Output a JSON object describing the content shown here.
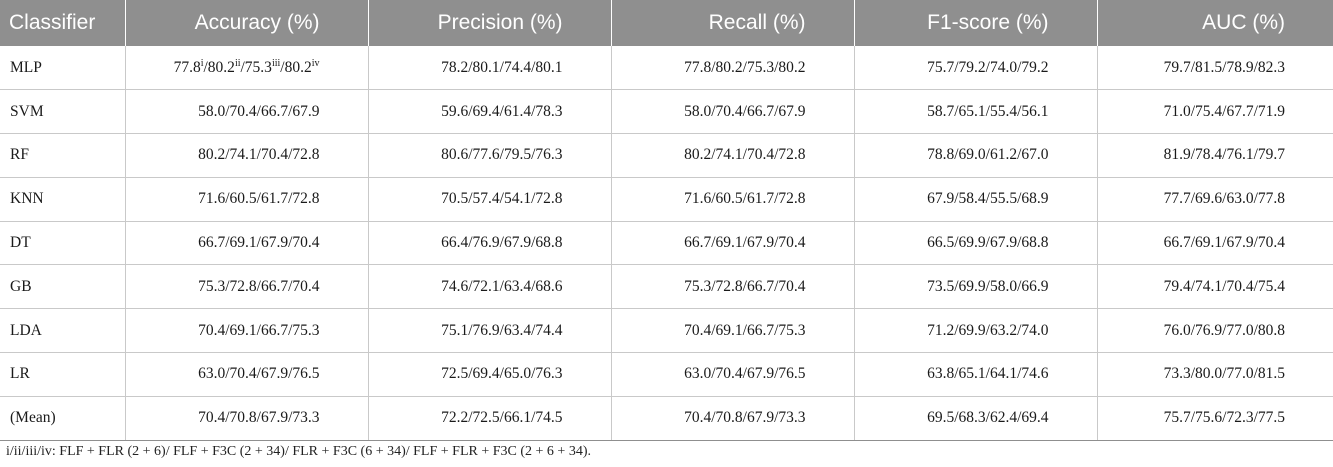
{
  "headers": [
    "Classifier",
    "Accuracy (%)",
    "Precision (%)",
    "Recall (%)",
    "F1-score (%)",
    "AUC (%)"
  ],
  "first_row_accuracy": {
    "values": [
      "77.8",
      "/80.2",
      "/75.3",
      "/80.2"
    ],
    "markers": [
      "i",
      "ii",
      "iii",
      "iv"
    ]
  },
  "rows": [
    {
      "classifier": "MLP",
      "accuracy": "",
      "precision": "78.2/80.1/74.4/80.1",
      "recall": "77.8/80.2/75.3/80.2",
      "f1": "75.7/79.2/74.0/79.2",
      "auc": "79.7/81.5/78.9/82.3"
    },
    {
      "classifier": "SVM",
      "accuracy": "58.0/70.4/66.7/67.9",
      "precision": "59.6/69.4/61.4/78.3",
      "recall": "58.0/70.4/66.7/67.9",
      "f1": "58.7/65.1/55.4/56.1",
      "auc": "71.0/75.4/67.7/71.9"
    },
    {
      "classifier": "RF",
      "accuracy": "80.2/74.1/70.4/72.8",
      "precision": "80.6/77.6/79.5/76.3",
      "recall": "80.2/74.1/70.4/72.8",
      "f1": "78.8/69.0/61.2/67.0",
      "auc": "81.9/78.4/76.1/79.7"
    },
    {
      "classifier": "KNN",
      "accuracy": "71.6/60.5/61.7/72.8",
      "precision": "70.5/57.4/54.1/72.8",
      "recall": "71.6/60.5/61.7/72.8",
      "f1": "67.9/58.4/55.5/68.9",
      "auc": "77.7/69.6/63.0/77.8"
    },
    {
      "classifier": "DT",
      "accuracy": "66.7/69.1/67.9/70.4",
      "precision": "66.4/76.9/67.9/68.8",
      "recall": "66.7/69.1/67.9/70.4",
      "f1": "66.5/69.9/67.9/68.8",
      "auc": "66.7/69.1/67.9/70.4"
    },
    {
      "classifier": "GB",
      "accuracy": "75.3/72.8/66.7/70.4",
      "precision": "74.6/72.1/63.4/68.6",
      "recall": "75.3/72.8/66.7/70.4",
      "f1": "73.5/69.9/58.0/66.9",
      "auc": "79.4/74.1/70.4/75.4"
    },
    {
      "classifier": "LDA",
      "accuracy": "70.4/69.1/66.7/75.3",
      "precision": "75.1/76.9/63.4/74.4",
      "recall": "70.4/69.1/66.7/75.3",
      "f1": "71.2/69.9/63.2/74.0",
      "auc": "76.0/76.9/77.0/80.8"
    },
    {
      "classifier": "LR",
      "accuracy": "63.0/70.4/67.9/76.5",
      "precision": "72.5/69.4/65.0/76.3",
      "recall": "63.0/70.4/67.9/76.5",
      "f1": "63.8/65.1/64.1/74.6",
      "auc": "73.3/80.0/77.0/81.5"
    },
    {
      "classifier": "(Mean)",
      "accuracy": "70.4/70.8/67.9/73.3",
      "precision": "72.2/72.5/66.1/74.5",
      "recall": "70.4/70.8/67.9/73.3",
      "f1": "69.5/68.3/62.4/69.4",
      "auc": "75.7/75.6/72.3/77.5"
    }
  ],
  "footnote": "i/ii/iii/iv: FLF + FLR (2 + 6)/ FLF + F3C (2 + 34)/ FLR + F3C (6 + 34)/ FLF + FLR + F3C (2 + 6 + 34).",
  "colors": {
    "header_bg": "#8f8f8f",
    "header_text": "#ffffff",
    "grid_line": "#c9c9c9"
  }
}
